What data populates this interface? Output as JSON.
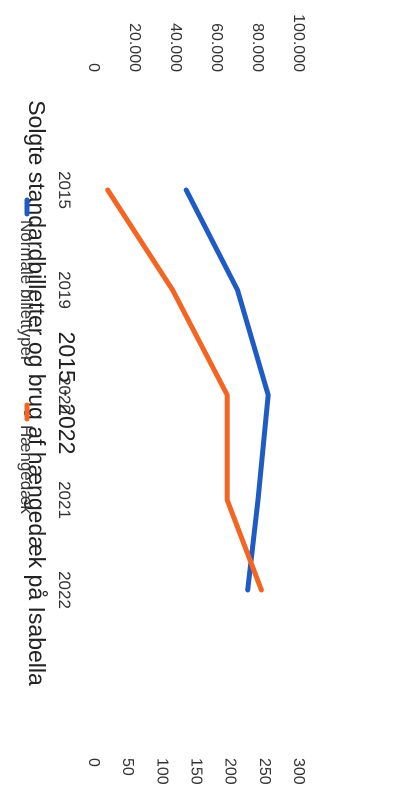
{
  "chart_data": {
    "type": "line",
    "title": "Solgte standardbilletter og brug af hængedæk på Isabella",
    "subtitle": "2015 - 2022",
    "categories": [
      "2015",
      "2019",
      "2020",
      "2021",
      "2022"
    ],
    "series": [
      {
        "name": "Normale billettyper",
        "color": "#1f5bc4",
        "axis": "left",
        "values": [
          45000,
          70000,
          85000,
          80000,
          75000
        ]
      },
      {
        "name": "Hængedæk",
        "color": "#f26522",
        "axis": "right",
        "values": [
          20,
          115,
          195,
          195,
          245
        ]
      }
    ],
    "y_left": {
      "ticks": [
        "0",
        "20.000",
        "40.000",
        "60.000",
        "80.000",
        "100.000"
      ],
      "min": 0,
      "max": 100000
    },
    "y_right": {
      "ticks": [
        "0",
        "50",
        "100",
        "150",
        "200",
        "250",
        "300"
      ],
      "min": 0,
      "max": 300
    },
    "legend": [
      "Normale billettyper",
      "Hængedæk"
    ],
    "legend_position": "bottom",
    "orientation": "rotated 90° clockwise"
  }
}
